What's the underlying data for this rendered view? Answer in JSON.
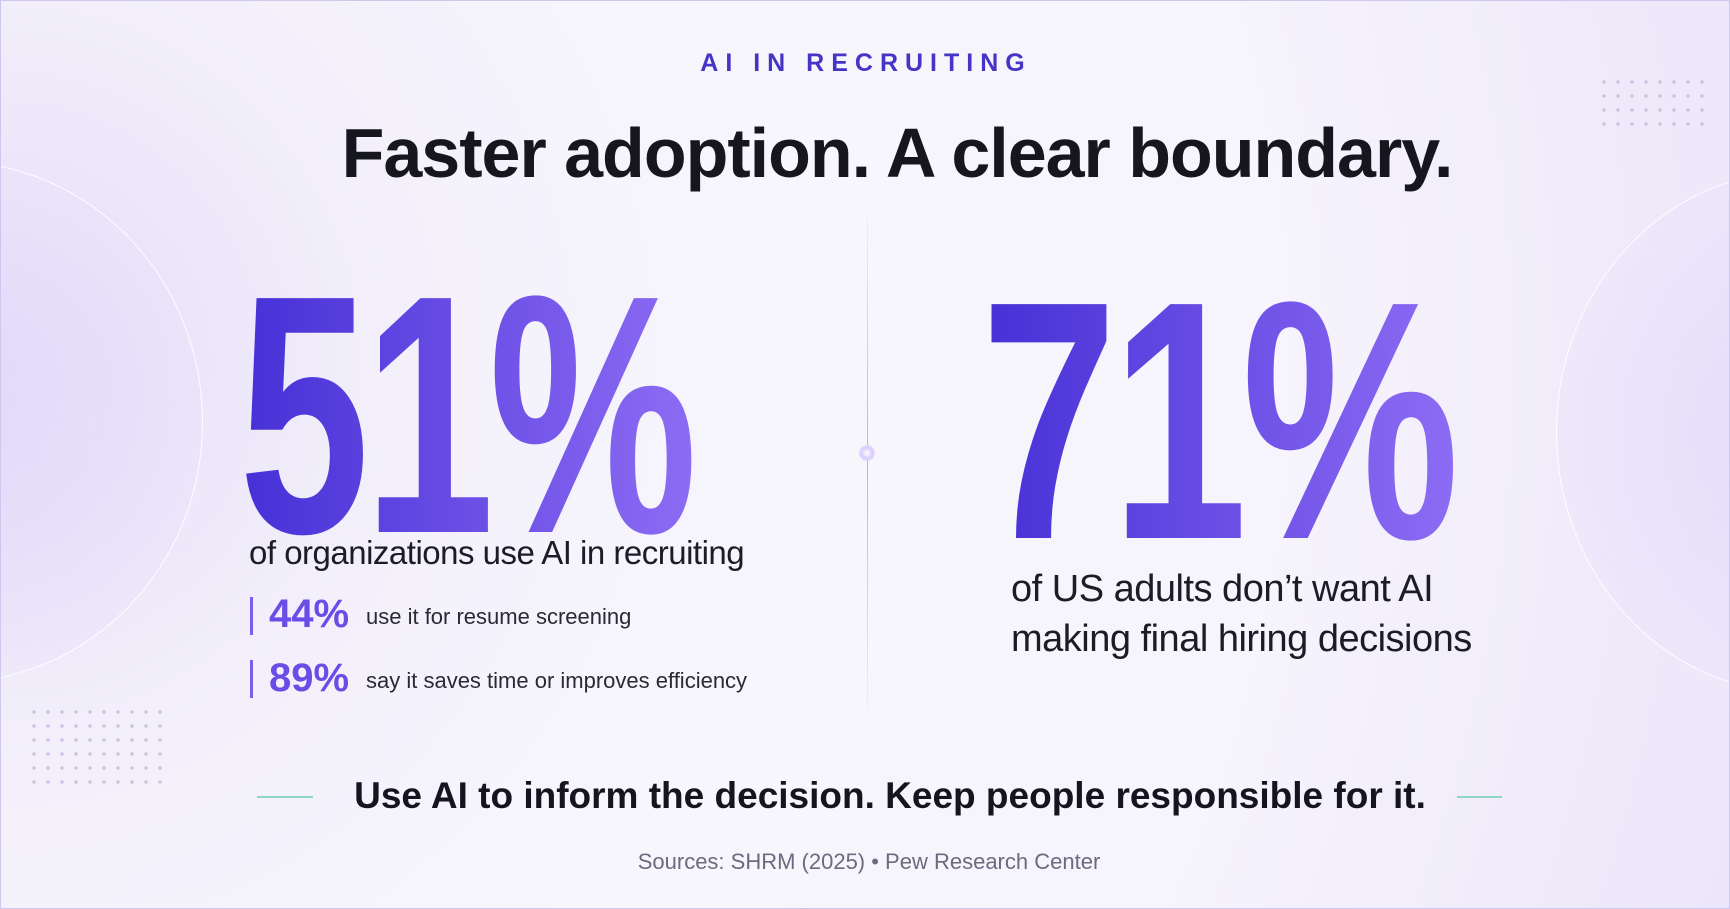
{
  "eyebrow": "AI IN RECRUITING",
  "title": "Faster adoption. A clear boundary.",
  "left": {
    "stat": "51%",
    "caption": "of organizations use AI in recruiting",
    "details": [
      {
        "stat": "44%",
        "text": "use it for resume screening"
      },
      {
        "stat": "89%",
        "text": "say it saves time or improves efficiency"
      }
    ]
  },
  "right": {
    "stat": "71%",
    "caption_lines": [
      "of US adults don’t want AI",
      "making final hiring decisions"
    ]
  },
  "takeaway": "Use AI to inform the decision. Keep people responsible for it.",
  "sources": "Sources: SHRM (2025) • Pew Research Center"
}
